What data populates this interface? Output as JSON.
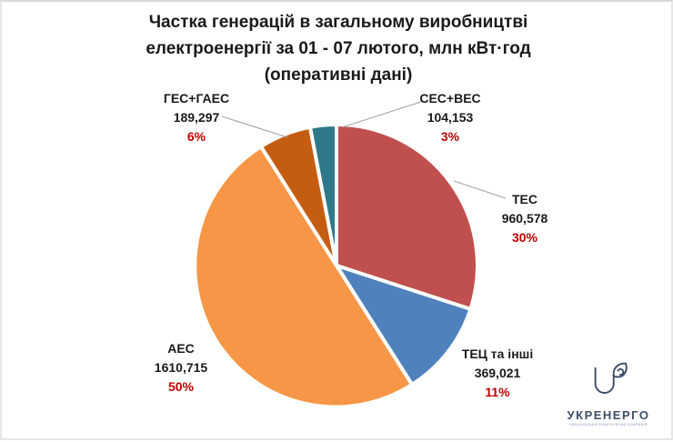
{
  "title": {
    "lines": [
      "Частка генерацій в загальному виробництві",
      "електроенергії за 01 - 07 лютого, млн кВт·год",
      "(оперативні дані)"
    ]
  },
  "chart_data": {
    "type": "pie",
    "title": "Частка генерацій в загальному виробництві електроенергії за 01 - 07 лютого, млн кВт·год (оперативні дані)",
    "unit": "млн кВт·год",
    "direction": "clockwise",
    "start_angle_deg": 0,
    "legend": "direct labels with leader lines, no legend box",
    "slices": [
      {
        "label": "ТЕС",
        "value": "960,578",
        "percent": "30%",
        "pct": 30,
        "color": "#C0504D"
      },
      {
        "label": "ТЕЦ та інші",
        "value": "369,021",
        "percent": "11%",
        "pct": 11,
        "color": "#4F81BD"
      },
      {
        "label": "АЕС",
        "value": "1610,715",
        "percent": "50%",
        "pct": 50,
        "color": "#F79646"
      },
      {
        "label": "ГЕС+ГАЕС",
        "value": "189,297",
        "percent": "6%",
        "pct": 6,
        "color": "#C55D11"
      },
      {
        "label": "СЕС+ВЕС",
        "value": "104,153",
        "percent": "3%",
        "pct": 3,
        "color": "#2E7889"
      }
    ]
  },
  "logo": {
    "name": "УКРЕНЕРГО",
    "tagline": "національна енергетична компанія"
  },
  "colors": {
    "percent_text": "#C00000",
    "label_text": "#1a1a1a",
    "leader_line": "#9e9e9e",
    "slice_border": "#ffffff",
    "logo_text": "#3d4e66"
  }
}
